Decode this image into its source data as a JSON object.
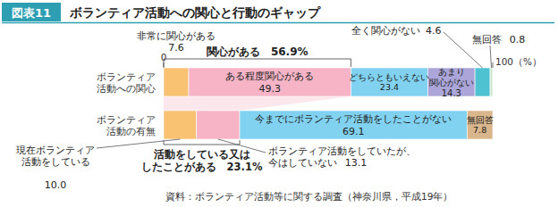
{
  "chart_data": {
    "type": "bar",
    "orientation": "horizontal",
    "stacked": true,
    "data_labels": true,
    "figure_label": "図表11",
    "title": "ボランティア活動への関心と行動のギャップ",
    "source": "資料：ボランティア活動等に関する調査（神奈川県，平成19年）",
    "categories": [
      "ボランティア活動への関心",
      "ボランティア活動の有無"
    ],
    "xlim": [
      0,
      100
    ],
    "xticks": [
      0,
      {
        "value": 100,
        "label": "100（%）"
      }
    ],
    "annotations": [
      "関心がある　56.9%",
      "活動をしている又はしたことがある　23.1%"
    ],
    "series": [
      {
        "name": "非常に関心がある",
        "color": "#f8c272",
        "values": [
          7.6,
          null
        ]
      },
      {
        "name": "ある程度関心がある",
        "color": "#f6b4c6",
        "values": [
          49.3,
          null
        ]
      },
      {
        "name": "どちらともいえない",
        "color": "#80d2f0",
        "values": [
          23.4,
          null
        ]
      },
      {
        "name": "あまり関心がない",
        "color": "#aba5d9",
        "values": [
          14.3,
          null
        ]
      },
      {
        "name": "全く関心がない",
        "color": "#4fc2d2",
        "values": [
          4.6,
          null
        ]
      },
      {
        "name": "無回答",
        "color": "#cfe8cf",
        "values": [
          0.8,
          null
        ]
      },
      {
        "name": "現在ボランティア活動をしている",
        "color": "#f8c272",
        "values": [
          null,
          10
        ],
        "value_labels": [
          null,
          "10.0"
        ]
      },
      {
        "name": "ボランティア活動をしていたが、今はしていない",
        "color": "#f6b4c6",
        "values": [
          null,
          13.1
        ]
      },
      {
        "name": "今までにボランティア活動をしたことがない",
        "color": "#80d2f0",
        "values": [
          null,
          69.1
        ]
      },
      {
        "name": "無回答",
        "color": "#d9b68c",
        "values": [
          null,
          7.8
        ]
      }
    ]
  }
}
